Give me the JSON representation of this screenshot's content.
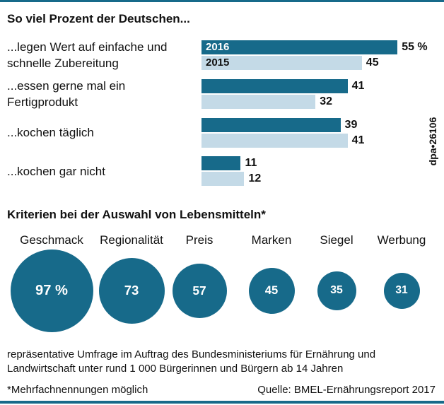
{
  "chart_data": [
    {
      "type": "hbar",
      "title": "So viel Prozent der Deutschen...",
      "categories": [
        "...legen Wert auf einfache und schnelle Zubereitung",
        "...essen gerne mal ein Fertigprodukt",
        "...kochen täglich",
        "...kochen gar nicht"
      ],
      "series": [
        {
          "name": "2016",
          "color": "#176a8a",
          "values": [
            55,
            41,
            39,
            11
          ],
          "value_labels": [
            "55 %",
            "41",
            "39",
            "11"
          ]
        },
        {
          "name": "2015",
          "color": "#c4dae7",
          "values": [
            45,
            32,
            41,
            12
          ]
        }
      ]
    },
    {
      "type": "bubble",
      "title": "Kriterien bei der Auswahl von Lebensmitteln*",
      "categories": [
        "Geschmack",
        "Regionalität",
        "Preis",
        "Marken",
        "Siegel",
        "Werbung"
      ],
      "values": [
        97,
        73,
        57,
        45,
        35,
        31
      ],
      "value_labels": [
        "97 %",
        "73",
        "57",
        "45",
        "35",
        "31"
      ],
      "color": "#176a8a"
    }
  ],
  "description": "repräsentative Umfrage im Auftrag des Bundesministeriums für Ernährung und Landwirtschaft unter rund 1 000 Bürgerinnen und Bürgern ab 14 Jahren",
  "footnote": "*Mehrfachnennungen möglich",
  "source": "Quelle: BMEL-Ernährungsreport 2017",
  "credit": "dpa•26106"
}
